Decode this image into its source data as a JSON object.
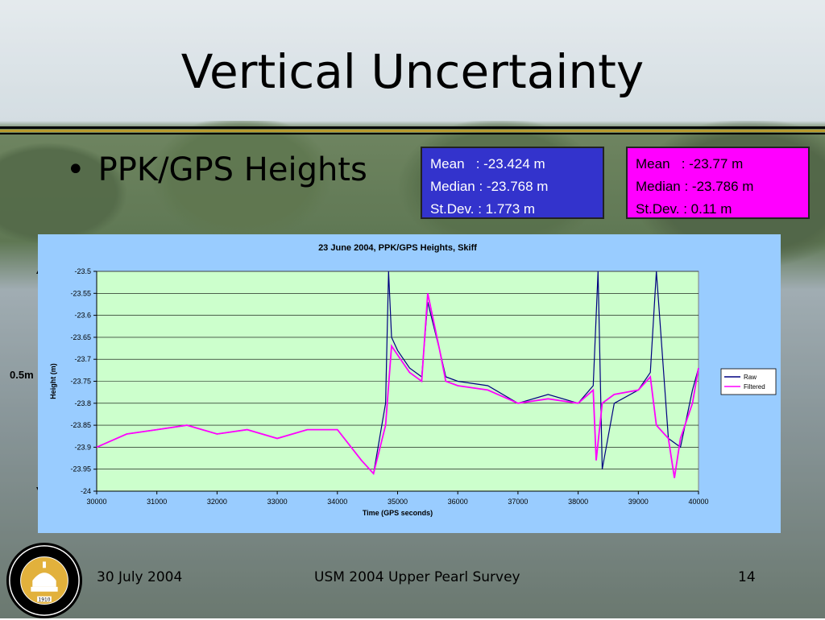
{
  "slide": {
    "title": "Vertical Uncertainty",
    "bullet": "PPK/GPS Heights",
    "scale_label": "0.5m",
    "footer": {
      "date": "30 July 2004",
      "center": "USM 2004 Upper Pearl Survey",
      "page": "14"
    },
    "seal_text": "THE UNIVERSITY OF SOUTHERN MISSISSIPPI",
    "seal_year": "1910"
  },
  "stats_raw": {
    "mean": "Mean   : -23.424 m",
    "median": "Median : -23.768 m",
    "stdev": "St.Dev. : 1.773 m",
    "color": "#3333cc"
  },
  "stats_filtered": {
    "mean": "Mean   : -23.77 m",
    "median": "Median : -23.786 m",
    "stdev": "St.Dev. : 0.11 m",
    "color": "#ff00ff"
  },
  "chart_data": {
    "type": "line",
    "title": "23 June 2004, PPK/GPS Heights, Skiff",
    "xlabel": "Time (GPS seconds)",
    "ylabel": "Height (m)",
    "xlim": [
      30000,
      40000
    ],
    "ylim": [
      -24,
      -23.5
    ],
    "xticks": [
      30000,
      31000,
      32000,
      33000,
      34000,
      35000,
      36000,
      37000,
      38000,
      39000,
      40000
    ],
    "yticks": [
      -23.5,
      -23.55,
      -23.6,
      -23.65,
      -23.7,
      -23.75,
      -23.8,
      -23.85,
      -23.9,
      -23.95,
      -24
    ],
    "grid": true,
    "legend": "right",
    "plot_background": "#ccffcc",
    "series": [
      {
        "name": "Raw",
        "color": "#000080",
        "x": [
          30000,
          30500,
          31000,
          31500,
          32000,
          32500,
          33000,
          33500,
          34000,
          34400,
          34600,
          34800,
          34850,
          34900,
          35000,
          35200,
          35400,
          35500,
          35700,
          35800,
          36000,
          36500,
          37000,
          37500,
          38000,
          38250,
          38330,
          38400,
          38600,
          39000,
          39200,
          39300,
          39500,
          39700,
          39900,
          40000
        ],
        "y": [
          -23.9,
          -23.87,
          -23.86,
          -23.85,
          -23.87,
          -23.86,
          -23.88,
          -23.86,
          -23.86,
          -23.93,
          -23.96,
          -23.8,
          -23.5,
          -23.65,
          -23.68,
          -23.72,
          -23.74,
          -23.57,
          -23.68,
          -23.74,
          -23.75,
          -23.76,
          -23.8,
          -23.78,
          -23.8,
          -23.76,
          -23.5,
          -23.95,
          -23.8,
          -23.77,
          -23.73,
          -23.5,
          -23.88,
          -23.9,
          -23.77,
          -23.72
        ]
      },
      {
        "name": "Filtered",
        "color": "#ff00ff",
        "x": [
          30000,
          30500,
          31000,
          31500,
          32000,
          32500,
          33000,
          33500,
          34000,
          34400,
          34600,
          34800,
          34900,
          35000,
          35200,
          35400,
          35500,
          35700,
          35800,
          36000,
          36500,
          37000,
          37500,
          38000,
          38250,
          38300,
          38400,
          38600,
          39000,
          39200,
          39300,
          39500,
          39600,
          39700,
          39900,
          40000
        ],
        "y": [
          -23.9,
          -23.87,
          -23.86,
          -23.85,
          -23.87,
          -23.86,
          -23.88,
          -23.86,
          -23.86,
          -23.93,
          -23.96,
          -23.85,
          -23.67,
          -23.69,
          -23.73,
          -23.75,
          -23.55,
          -23.68,
          -23.75,
          -23.76,
          -23.77,
          -23.8,
          -23.79,
          -23.8,
          -23.77,
          -23.93,
          -23.8,
          -23.78,
          -23.77,
          -23.74,
          -23.85,
          -23.88,
          -23.97,
          -23.88,
          -23.8,
          -23.72
        ]
      }
    ]
  }
}
